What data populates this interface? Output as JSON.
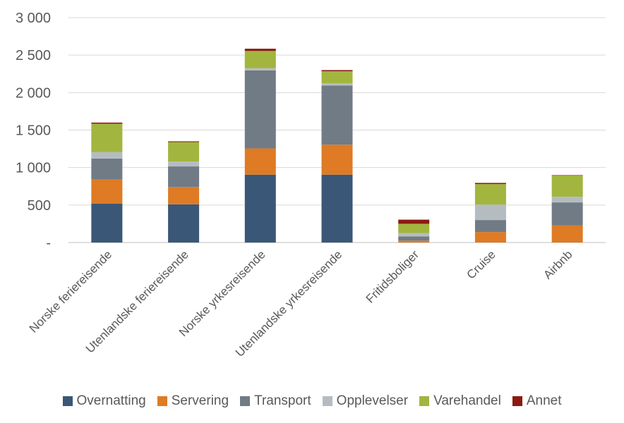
{
  "chart_data": {
    "type": "bar",
    "stacked": true,
    "title": "",
    "xlabel": "",
    "ylabel": "",
    "ylim": [
      0,
      3000
    ],
    "yticks": [
      0,
      500,
      1000,
      1500,
      2000,
      2500,
      3000
    ],
    "ytick_labels": [
      "-",
      "500",
      "1 000",
      "1 500",
      "2 000",
      "2 500",
      "3 000"
    ],
    "grid": true,
    "legend_position": "bottom",
    "categories": [
      "Norske feriereisende",
      "Utenlandske feriereisende",
      "Norske yrkesreisende",
      "Utenlandske yrkesreisende",
      "Fritidsboliger",
      "Cruise",
      "Airbnb"
    ],
    "series": [
      {
        "name": "Overnatting",
        "color": "#3a5777",
        "values": [
          520,
          510,
          905,
          905,
          0,
          0,
          0
        ]
      },
      {
        "name": "Servering",
        "color": "#de7b24",
        "values": [
          320,
          230,
          350,
          400,
          25,
          140,
          230
        ]
      },
      {
        "name": "Transport",
        "color": "#717b85",
        "values": [
          280,
          275,
          1040,
          790,
          55,
          160,
          305
        ]
      },
      {
        "name": "Opplevelser",
        "color": "#b4bcc2",
        "values": [
          85,
          65,
          30,
          30,
          45,
          205,
          75
        ]
      },
      {
        "name": "Varehandel",
        "color": "#a2b53e",
        "values": [
          380,
          260,
          230,
          160,
          125,
          275,
          285
        ]
      },
      {
        "name": "Annet",
        "color": "#8b1a10",
        "values": [
          15,
          10,
          30,
          15,
          55,
          15,
          5
        ]
      }
    ]
  }
}
